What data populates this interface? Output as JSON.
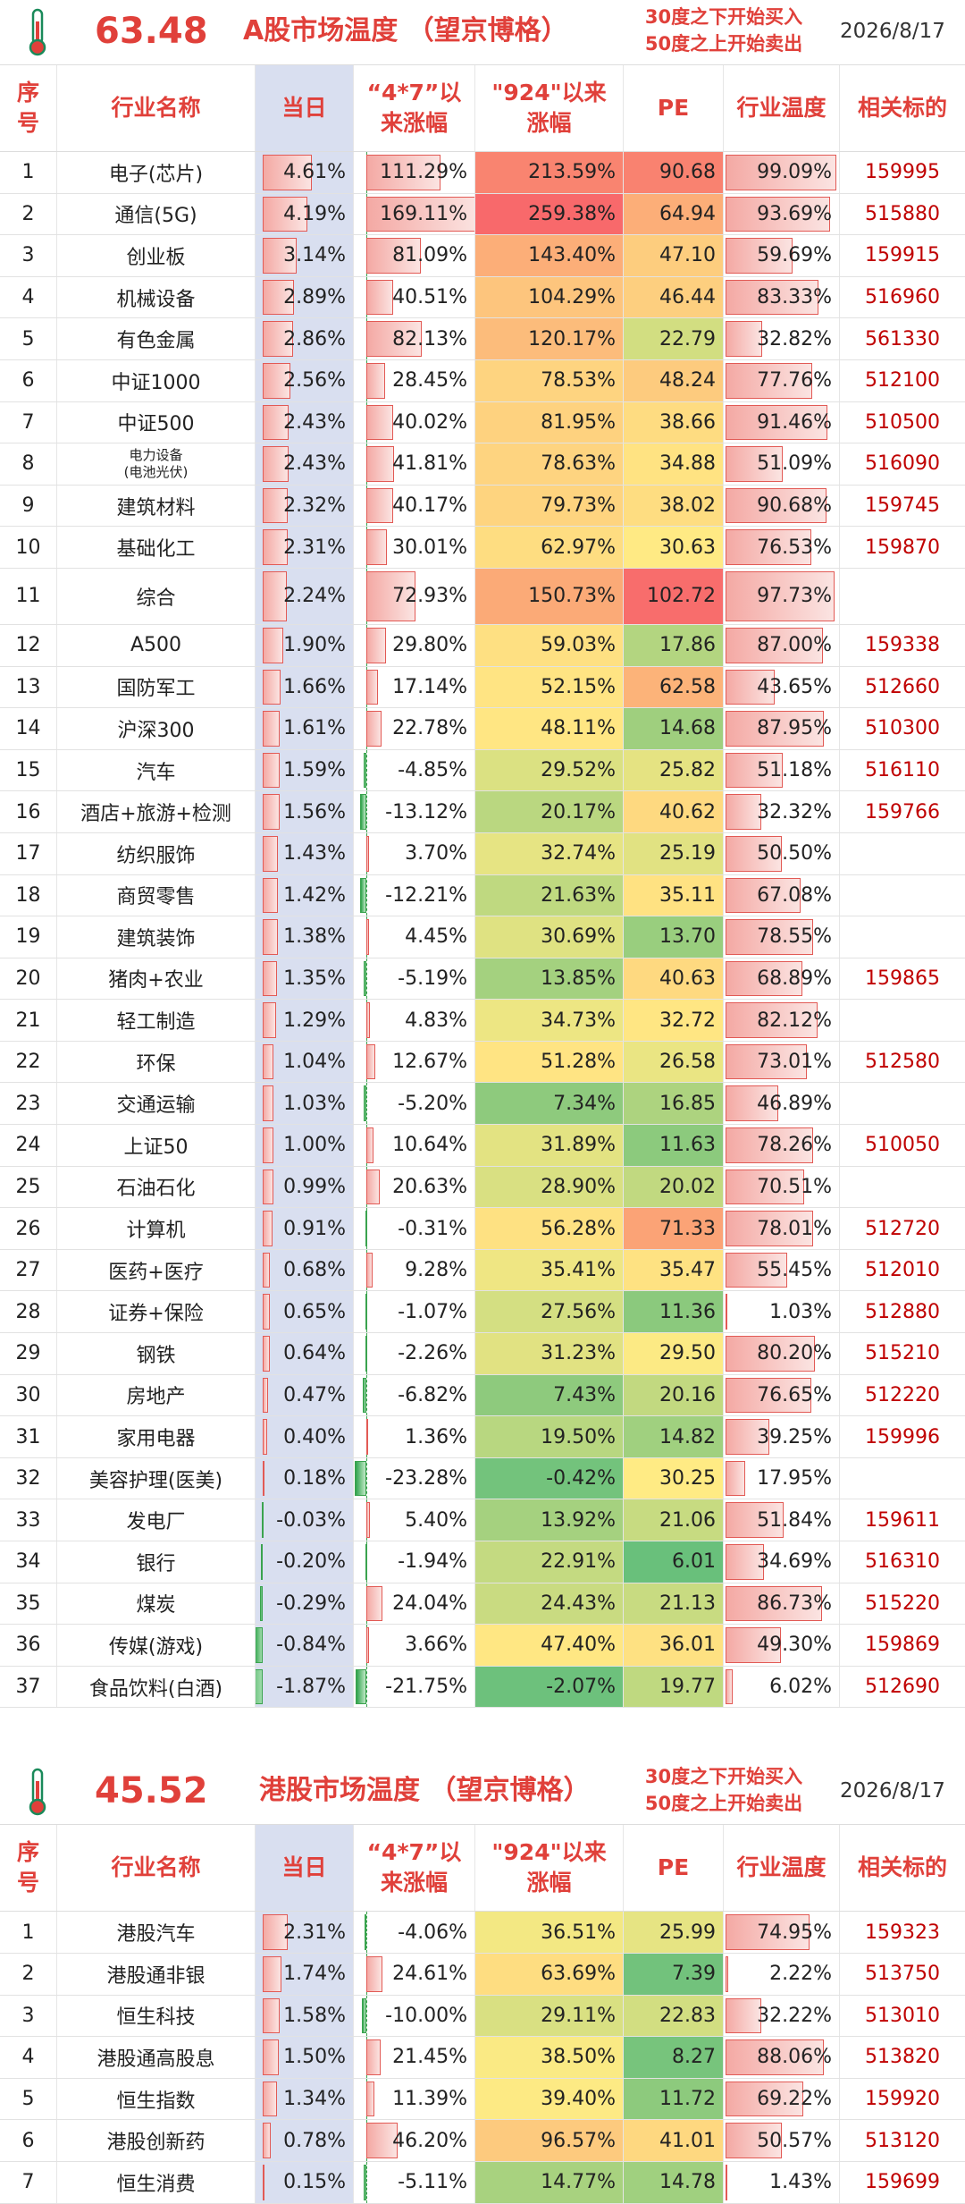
{
  "headers": {
    "seq": "序号",
    "name": "行业名称",
    "today": "当日",
    "since47": "“4*7”以来涨幅",
    "since924": "\"924\"以来涨幅",
    "pe": "PE",
    "temp": "行业温度",
    "code": "相关标的"
  },
  "sections": [
    {
      "temperature": "63.48",
      "title": "A股市场温度 （望京博格）",
      "rule_line1": "30度之下开始买入",
      "rule_line2": "50度之上开始卖出",
      "date": "2026/8/17",
      "rows": [
        {
          "seq": "1",
          "name": "电子(芯片)",
          "today": "4.61%",
          "d47": "111.29%",
          "d924": "213.59%",
          "pe": "90.68",
          "temp": "99.09%",
          "code": "159995"
        },
        {
          "seq": "2",
          "name": "通信(5G)",
          "today": "4.19%",
          "d47": "169.11%",
          "d924": "259.38%",
          "pe": "64.94",
          "temp": "93.69%",
          "code": "515880"
        },
        {
          "seq": "3",
          "name": "创业板",
          "today": "3.14%",
          "d47": "81.09%",
          "d924": "143.40%",
          "pe": "47.10",
          "temp": "59.69%",
          "code": "159915"
        },
        {
          "seq": "4",
          "name": "机械设备",
          "today": "2.89%",
          "d47": "40.51%",
          "d924": "104.29%",
          "pe": "46.44",
          "temp": "83.33%",
          "code": "516960"
        },
        {
          "seq": "5",
          "name": "有色金属",
          "today": "2.86%",
          "d47": "82.13%",
          "d924": "120.17%",
          "pe": "22.79",
          "temp": "32.82%",
          "code": "561330"
        },
        {
          "seq": "6",
          "name": "中证1000",
          "today": "2.56%",
          "d47": "28.45%",
          "d924": "78.53%",
          "pe": "48.24",
          "temp": "77.76%",
          "code": "512100"
        },
        {
          "seq": "7",
          "name": "中证500",
          "today": "2.43%",
          "d47": "40.02%",
          "d924": "81.95%",
          "pe": "38.66",
          "temp": "91.46%",
          "code": "510500"
        },
        {
          "seq": "8",
          "name": "电力设备\n(电池光伏)",
          "today": "2.43%",
          "d47": "41.81%",
          "d924": "78.63%",
          "pe": "34.88",
          "temp": "51.09%",
          "code": "516090",
          "small": true
        },
        {
          "seq": "9",
          "name": "建筑材料",
          "today": "2.32%",
          "d47": "40.17%",
          "d924": "79.73%",
          "pe": "38.02",
          "temp": "90.68%",
          "code": "159745"
        },
        {
          "seq": "10",
          "name": "基础化工",
          "today": "2.31%",
          "d47": "30.01%",
          "d924": "62.97%",
          "pe": "30.63",
          "temp": "76.53%",
          "code": "159870"
        },
        {
          "seq": "11",
          "name": "综合",
          "today": "2.24%",
          "d47": "72.93%",
          "d924": "150.73%",
          "pe": "102.72",
          "temp": "97.73%",
          "code": "",
          "tall": true
        },
        {
          "seq": "12",
          "name": "A500",
          "today": "1.90%",
          "d47": "29.80%",
          "d924": "59.03%",
          "pe": "17.86",
          "temp": "87.00%",
          "code": "159338"
        },
        {
          "seq": "13",
          "name": "国防军工",
          "today": "1.66%",
          "d47": "17.14%",
          "d924": "52.15%",
          "pe": "62.58",
          "temp": "43.65%",
          "code": "512660"
        },
        {
          "seq": "14",
          "name": "沪深300",
          "today": "1.61%",
          "d47": "22.78%",
          "d924": "48.11%",
          "pe": "14.68",
          "temp": "87.95%",
          "code": "510300"
        },
        {
          "seq": "15",
          "name": "汽车",
          "today": "1.59%",
          "d47": "-4.85%",
          "d924": "29.52%",
          "pe": "25.82",
          "temp": "51.18%",
          "code": "516110"
        },
        {
          "seq": "16",
          "name": "酒店+旅游+检测",
          "today": "1.56%",
          "d47": "-13.12%",
          "d924": "20.17%",
          "pe": "40.62",
          "temp": "32.32%",
          "code": "159766"
        },
        {
          "seq": "17",
          "name": "纺织服饰",
          "today": "1.43%",
          "d47": "3.70%",
          "d924": "32.74%",
          "pe": "25.19",
          "temp": "50.50%",
          "code": ""
        },
        {
          "seq": "18",
          "name": "商贸零售",
          "today": "1.42%",
          "d47": "-12.21%",
          "d924": "21.63%",
          "pe": "35.11",
          "temp": "67.08%",
          "code": ""
        },
        {
          "seq": "19",
          "name": "建筑装饰",
          "today": "1.38%",
          "d47": "4.45%",
          "d924": "30.69%",
          "pe": "13.70",
          "temp": "78.55%",
          "code": ""
        },
        {
          "seq": "20",
          "name": "猪肉+农业",
          "today": "1.35%",
          "d47": "-5.19%",
          "d924": "13.85%",
          "pe": "40.63",
          "temp": "68.89%",
          "code": "159865"
        },
        {
          "seq": "21",
          "name": "轻工制造",
          "today": "1.29%",
          "d47": "4.83%",
          "d924": "34.73%",
          "pe": "32.72",
          "temp": "82.12%",
          "code": ""
        },
        {
          "seq": "22",
          "name": "环保",
          "today": "1.04%",
          "d47": "12.67%",
          "d924": "51.28%",
          "pe": "26.58",
          "temp": "73.01%",
          "code": "512580"
        },
        {
          "seq": "23",
          "name": "交通运输",
          "today": "1.03%",
          "d47": "-5.20%",
          "d924": "7.34%",
          "pe": "16.85",
          "temp": "46.89%",
          "code": ""
        },
        {
          "seq": "24",
          "name": "上证50",
          "today": "1.00%",
          "d47": "10.64%",
          "d924": "31.89%",
          "pe": "11.63",
          "temp": "78.26%",
          "code": "510050"
        },
        {
          "seq": "25",
          "name": "石油石化",
          "today": "0.99%",
          "d47": "20.63%",
          "d924": "28.90%",
          "pe": "20.02",
          "temp": "70.51%",
          "code": ""
        },
        {
          "seq": "26",
          "name": "计算机",
          "today": "0.91%",
          "d47": "-0.31%",
          "d924": "56.28%",
          "pe": "71.33",
          "temp": "78.01%",
          "code": "512720"
        },
        {
          "seq": "27",
          "name": "医药+医疗",
          "today": "0.68%",
          "d47": "9.28%",
          "d924": "35.41%",
          "pe": "35.47",
          "temp": "55.45%",
          "code": "512010"
        },
        {
          "seq": "28",
          "name": "证券+保险",
          "today": "0.65%",
          "d47": "-1.07%",
          "d924": "27.56%",
          "pe": "11.36",
          "temp": "1.03%",
          "code": "512880"
        },
        {
          "seq": "29",
          "name": "钢铁",
          "today": "0.64%",
          "d47": "-2.26%",
          "d924": "31.23%",
          "pe": "29.50",
          "temp": "80.20%",
          "code": "515210"
        },
        {
          "seq": "30",
          "name": "房地产",
          "today": "0.47%",
          "d47": "-6.82%",
          "d924": "7.43%",
          "pe": "20.16",
          "temp": "76.65%",
          "code": "512220"
        },
        {
          "seq": "31",
          "name": "家用电器",
          "today": "0.40%",
          "d47": "1.36%",
          "d924": "19.50%",
          "pe": "14.82",
          "temp": "39.25%",
          "code": "159996"
        },
        {
          "seq": "32",
          "name": "美容护理(医美)",
          "today": "0.18%",
          "d47": "-23.28%",
          "d924": "-0.42%",
          "pe": "30.25",
          "temp": "17.95%",
          "code": ""
        },
        {
          "seq": "33",
          "name": "发电厂",
          "today": "-0.03%",
          "d47": "5.40%",
          "d924": "13.92%",
          "pe": "21.06",
          "temp": "51.84%",
          "code": "159611"
        },
        {
          "seq": "34",
          "name": "银行",
          "today": "-0.20%",
          "d47": "-1.94%",
          "d924": "22.91%",
          "pe": "6.01",
          "temp": "34.69%",
          "code": "516310"
        },
        {
          "seq": "35",
          "name": "煤炭",
          "today": "-0.29%",
          "d47": "24.04%",
          "d924": "24.43%",
          "pe": "21.13",
          "temp": "86.73%",
          "code": "515220"
        },
        {
          "seq": "36",
          "name": "传媒(游戏)",
          "today": "-0.84%",
          "d47": "3.66%",
          "d924": "47.40%",
          "pe": "36.01",
          "temp": "49.30%",
          "code": "159869"
        },
        {
          "seq": "37",
          "name": "食品饮料(白酒)",
          "today": "-1.87%",
          "d47": "-21.75%",
          "d924": "-2.07%",
          "pe": "19.77",
          "temp": "6.02%",
          "code": "512690"
        }
      ]
    },
    {
      "temperature": "45.52",
      "title": "港股市场温度 （望京博格）",
      "rule_line1": "30度之下开始买入",
      "rule_line2": "50度之上开始卖出",
      "date": "2026/8/17",
      "rows": [
        {
          "seq": "1",
          "name": "港股汽车",
          "today": "2.31%",
          "d47": "-4.06%",
          "d924": "36.51%",
          "pe": "25.99",
          "temp": "74.95%",
          "code": "159323"
        },
        {
          "seq": "2",
          "name": "港股通非银",
          "today": "1.74%",
          "d47": "24.61%",
          "d924": "63.69%",
          "pe": "7.39",
          "temp": "2.22%",
          "code": "513750"
        },
        {
          "seq": "3",
          "name": "恒生科技",
          "today": "1.58%",
          "d47": "-10.00%",
          "d924": "29.11%",
          "pe": "22.83",
          "temp": "32.22%",
          "code": "513010"
        },
        {
          "seq": "4",
          "name": "港股通高股息",
          "today": "1.50%",
          "d47": "21.45%",
          "d924": "38.50%",
          "pe": "8.27",
          "temp": "88.06%",
          "code": "513820"
        },
        {
          "seq": "5",
          "name": "恒生指数",
          "today": "1.34%",
          "d47": "11.39%",
          "d924": "39.40%",
          "pe": "11.72",
          "temp": "69.22%",
          "code": "159920"
        },
        {
          "seq": "6",
          "name": "港股创新药",
          "today": "0.78%",
          "d47": "46.20%",
          "d924": "96.57%",
          "pe": "41.01",
          "temp": "50.57%",
          "code": "513120"
        },
        {
          "seq": "7",
          "name": "恒生消费",
          "today": "0.15%",
          "d47": "-5.11%",
          "d924": "14.77%",
          "pe": "14.78",
          "temp": "1.43%",
          "code": "159699"
        }
      ]
    }
  ]
}
